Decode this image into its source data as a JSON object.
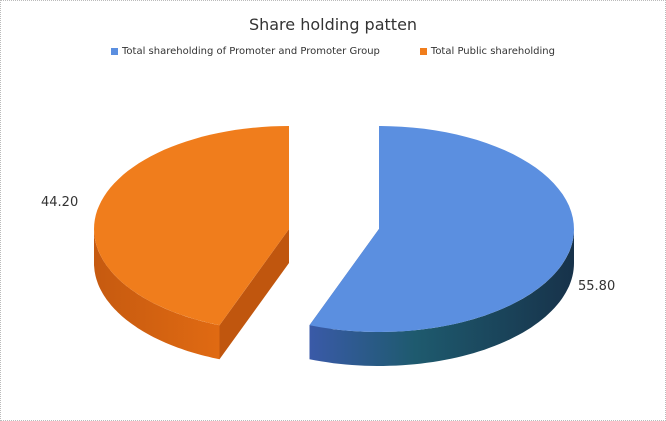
{
  "chart_data": {
    "type": "pie",
    "style": "3d-exploded",
    "title": "Share holding patten",
    "legend_placement": "top",
    "categories": [
      "Total shareholding of Promoter and Promoter Group",
      "Total Public shareholding"
    ],
    "values": [
      55.8,
      44.2
    ],
    "data_labels": [
      "55.80",
      "44.20"
    ],
    "colors": [
      "#5b8fe0",
      "#f07d1c"
    ]
  }
}
